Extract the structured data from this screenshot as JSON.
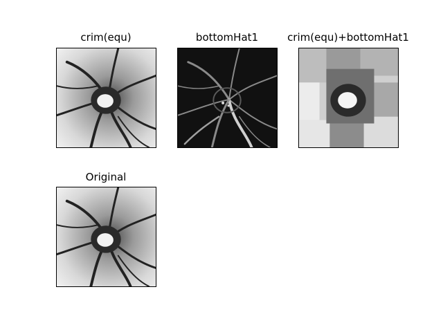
{
  "figure": {
    "background": "#ffffff",
    "panels": [
      {
        "id": "crim_equ",
        "title": "crim(equ)",
        "style": "bright-grayscale"
      },
      {
        "id": "bottomhat1",
        "title": "bottomHat1",
        "style": "dark-inverted"
      },
      {
        "id": "crim_plus_bottomhat1",
        "title": "crim(equ)+bottomHat1",
        "style": "blocky-grayscale"
      },
      {
        "id": "original",
        "title": "Original",
        "style": "bright-grayscale"
      }
    ]
  }
}
